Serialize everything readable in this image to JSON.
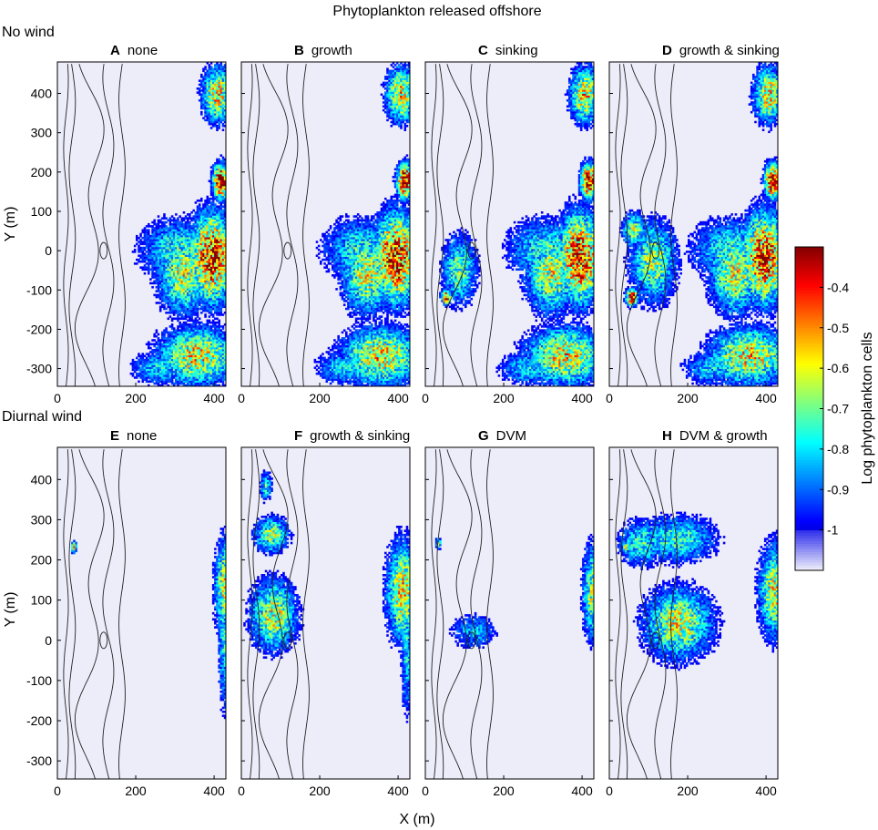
{
  "figure": {
    "title": "Phytoplankton released offshore",
    "rows": [
      "No wind",
      "Diurnal wind"
    ],
    "xlabel": "X (m)",
    "ylabel": "Y (m)",
    "colorbar_label": "Log phytoplankton cells",
    "x_ticks": [
      "0",
      "200",
      "400"
    ],
    "y_ticks": [
      "400",
      "300",
      "200",
      "100",
      "0",
      "-100",
      "-200",
      "-300"
    ],
    "colorbar_ticks": [
      "-0.4",
      "-0.5",
      "-0.6",
      "-0.7",
      "-0.8",
      "-0.9",
      "-1"
    ]
  },
  "chart_data": {
    "type": "heatmap",
    "xlabel": "X (m)",
    "ylabel": "Y (m)",
    "xlim": [
      0,
      430
    ],
    "ylim": [
      -345,
      480
    ],
    "colorbar": {
      "label": "Log phytoplankton cells",
      "range": [
        -1.1,
        -0.3
      ],
      "colormap": "jet"
    },
    "panels": [
      {
        "letter": "A",
        "title": "none",
        "row": "No wind"
      },
      {
        "letter": "B",
        "title": "growth",
        "row": "No wind"
      },
      {
        "letter": "C",
        "title": "sinking",
        "row": "No wind"
      },
      {
        "letter": "D",
        "title": "growth & sinking",
        "row": "No wind"
      },
      {
        "letter": "E",
        "title": "none",
        "row": "Diurnal wind"
      },
      {
        "letter": "F",
        "title": "growth & sinking",
        "row": "Diurnal wind"
      },
      {
        "letter": "G",
        "title": "DVM",
        "row": "Diurnal wind"
      },
      {
        "letter": "H",
        "title": "DVM & growth",
        "row": "Diurnal wind"
      }
    ]
  }
}
